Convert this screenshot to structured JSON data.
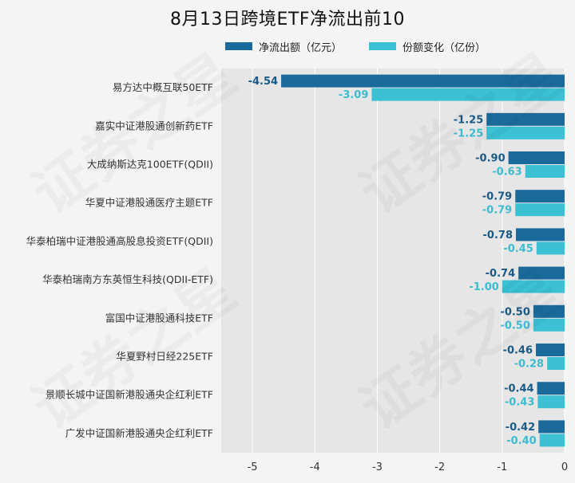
{
  "chart_data": {
    "type": "bar",
    "orientation": "horizontal",
    "title": "8月13日跨境ETF净流出前10",
    "categories": [
      "易方达中概互联50ETF",
      "嘉实中证港股通创新药ETF",
      "大成纳斯达克100ETF(QDII)",
      "华夏中证港股通医疗主题ETF",
      "华泰柏瑞中证港股通高股息投资ETF(QDII)",
      "华泰柏瑞南方东英恒生科技(QDII-ETF)",
      "富国中证港股通科技ETF",
      "华夏野村日经225ETF",
      "景顺长城中证国新港股通央企红利ETF",
      "广发中证国新港股通央企红利ETF"
    ],
    "series": [
      {
        "name": "净流出额（亿元）",
        "color": "#1a6b9c",
        "label_color": "#1a5a86",
        "values": [
          -4.54,
          -1.25,
          -0.9,
          -0.79,
          -0.78,
          -0.74,
          -0.5,
          -0.46,
          -0.44,
          -0.42
        ],
        "labels": [
          "-4.54",
          "-1.25",
          "-0.90",
          "-0.79",
          "-0.78",
          "-0.74",
          "-0.50",
          "-0.46",
          "-0.44",
          "-0.42"
        ]
      },
      {
        "name": "份额变化（亿份）",
        "color": "#3bc0d4",
        "label_color": "#3bbcd0",
        "values": [
          -3.09,
          -1.25,
          -0.63,
          -0.79,
          -0.45,
          -1.0,
          -0.5,
          -0.28,
          -0.43,
          -0.4
        ],
        "labels": [
          "-3.09",
          "-1.25",
          "-0.63",
          "-0.79",
          "-0.45",
          "-1.00",
          "-0.50",
          "-0.28",
          "-0.43",
          "-0.40"
        ]
      }
    ],
    "xlim": [
      -5.5,
      0
    ],
    "xticks": [
      -5,
      -4,
      -3,
      -2,
      -1,
      0
    ],
    "xtick_labels": [
      "-5",
      "-4",
      "-3",
      "-2",
      "-1",
      "0"
    ],
    "grid": true,
    "legend_position": "top",
    "plot_background": "#e6e6e6",
    "watermark": "证券之星"
  }
}
